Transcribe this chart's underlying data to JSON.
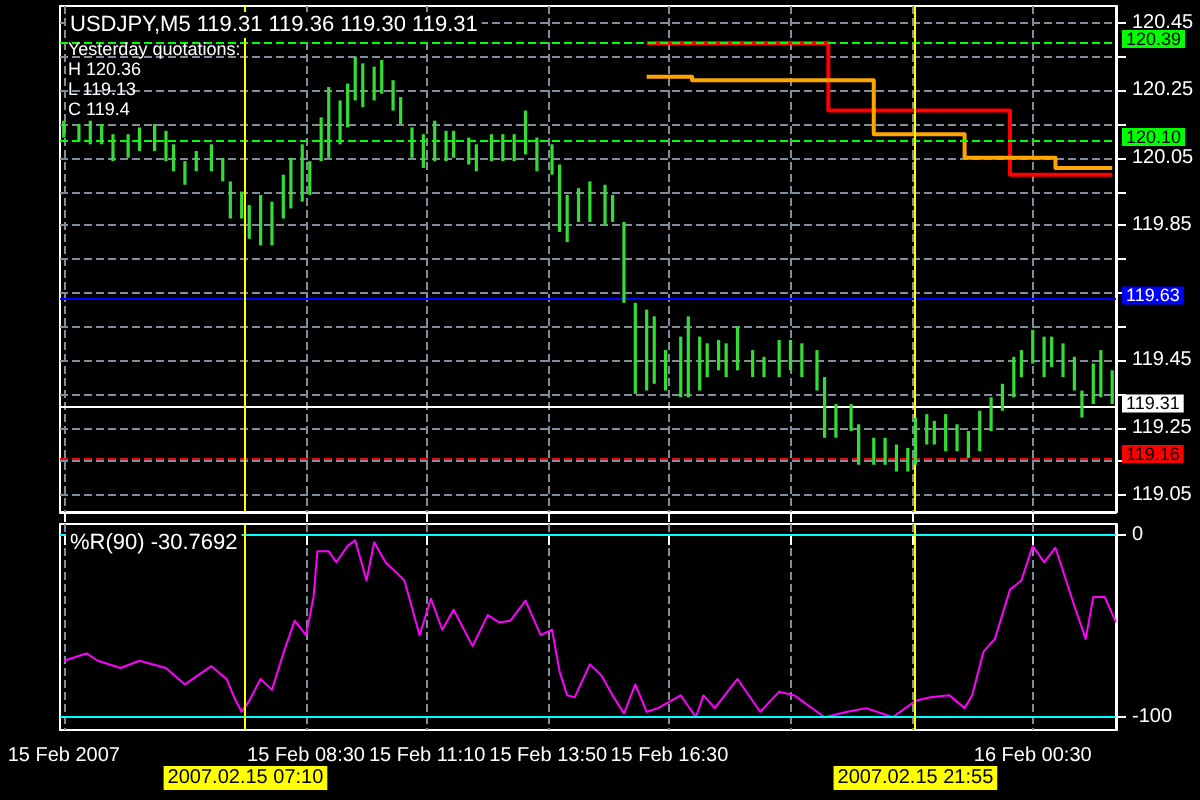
{
  "chart_data": [
    {
      "type": "bar",
      "title": "USDJPY,M5 119.31 119.36 119.30 119.31",
      "annotations": [
        "Yesterday quotations:",
        "H 120.36",
        "L 119.13",
        "C 119.4"
      ],
      "xlim": [
        "2007-02-15T03:05",
        "2007-02-16T02:20"
      ],
      "xticks": [
        {
          "value": "2007-02-15T03:10",
          "label": null
        },
        {
          "value": "2007-02-15T08:30",
          "label": null
        },
        {
          "value": "2007-02-15T11:10",
          "label": null
        },
        {
          "value": "2007-02-15T13:50",
          "label": null
        },
        {
          "value": "2007-02-15T16:30",
          "label": null
        },
        {
          "value": "2007-02-15T19:10",
          "label": null
        },
        {
          "value": "2007-02-15T21:50",
          "label": null
        },
        {
          "value": "2007-02-16T00:30",
          "label": null
        }
      ],
      "ylim": [
        119.0,
        120.5
      ],
      "yticks": [
        119.05,
        {
          "value": 119.15,
          "label": null
        },
        119.25,
        {
          "value": 119.35,
          "label": null
        },
        119.45,
        {
          "value": 119.55,
          "label": null
        },
        {
          "value": 119.65,
          "label": null
        },
        {
          "value": 119.75,
          "label": null
        },
        119.85,
        {
          "value": 119.95,
          "label": null
        },
        120.05,
        {
          "value": 120.15,
          "label": null
        },
        120.25,
        {
          "value": 120.35,
          "label": null
        },
        120.45
      ],
      "tick_labels": "y",
      "grid": true,
      "series": [
        {
          "color": "#33dd33",
          "x": [
            "2007-02-15T03:10",
            "2007-02-15T03:30",
            "2007-02-15T03:45",
            "2007-02-15T04:00",
            "2007-02-15T04:15",
            "2007-02-15T04:35",
            "2007-02-15T04:50",
            "2007-02-15T05:10",
            "2007-02-15T05:25",
            "2007-02-15T05:35",
            "2007-02-15T05:50",
            "2007-02-15T06:05",
            "2007-02-15T06:25",
            "2007-02-15T06:40",
            "2007-02-15T06:50",
            "2007-02-15T07:05",
            "2007-02-15T07:15",
            "2007-02-15T07:30",
            "2007-02-15T07:45",
            "2007-02-15T08:00",
            "2007-02-15T08:10",
            "2007-02-15T08:25",
            "2007-02-15T08:35",
            "2007-02-15T08:50",
            "2007-02-15T09:00",
            "2007-02-15T09:15",
            "2007-02-15T09:25",
            "2007-02-15T09:35",
            "2007-02-15T09:45",
            "2007-02-15T10:00",
            "2007-02-15T10:10",
            "2007-02-15T10:25",
            "2007-02-15T10:35",
            "2007-02-15T10:50",
            "2007-02-15T11:05",
            "2007-02-15T11:20",
            "2007-02-15T11:35",
            "2007-02-15T11:45",
            "2007-02-15T12:05",
            "2007-02-15T12:15",
            "2007-02-15T12:35",
            "2007-02-15T12:50",
            "2007-02-15T13:05",
            "2007-02-15T13:20",
            "2007-02-15T13:35",
            "2007-02-15T13:55",
            "2007-02-15T14:05",
            "2007-02-15T14:15",
            "2007-02-15T14:30",
            "2007-02-15T14:45",
            "2007-02-15T15:05",
            "2007-02-15T15:15",
            "2007-02-15T15:30",
            "2007-02-15T15:45",
            "2007-02-15T16:00",
            "2007-02-15T16:10",
            "2007-02-15T16:25",
            "2007-02-15T16:45",
            "2007-02-15T16:55",
            "2007-02-15T17:10",
            "2007-02-15T17:20",
            "2007-02-15T17:35",
            "2007-02-15T17:45",
            "2007-02-15T18:00",
            "2007-02-15T18:20",
            "2007-02-15T18:35",
            "2007-02-15T18:55",
            "2007-02-15T19:10",
            "2007-02-15T19:25",
            "2007-02-15T19:45",
            "2007-02-15T19:55",
            "2007-02-15T20:10",
            "2007-02-15T20:30",
            "2007-02-15T20:40",
            "2007-02-15T21:00",
            "2007-02-15T21:15",
            "2007-02-15T21:30",
            "2007-02-15T21:45",
            "2007-02-15T21:55",
            "2007-02-15T22:10",
            "2007-02-15T22:20",
            "2007-02-15T22:35",
            "2007-02-15T22:50",
            "2007-02-15T23:05",
            "2007-02-15T23:20",
            "2007-02-15T23:35",
            "2007-02-15T23:50",
            "2007-02-16T00:05",
            "2007-02-16T00:15",
            "2007-02-16T00:30",
            "2007-02-16T00:45",
            "2007-02-16T00:55",
            "2007-02-16T01:10",
            "2007-02-16T01:25",
            "2007-02-16T01:35",
            "2007-02-16T01:50",
            "2007-02-16T02:00",
            "2007-02-16T02:15"
          ],
          "base": [
            120.11,
            120.1,
            120.09,
            120.09,
            120.04,
            120.05,
            120.07,
            120.07,
            120.04,
            120.01,
            119.97,
            120.01,
            120.01,
            119.98,
            119.87,
            119.87,
            119.81,
            119.79,
            119.79,
            119.87,
            119.9,
            119.92,
            119.94,
            120.04,
            120.05,
            120.09,
            120.14,
            120.22,
            120.2,
            120.22,
            120.24,
            120.19,
            120.15,
            120.05,
            120.02,
            120.04,
            120.04,
            120.05,
            120.03,
            120.01,
            120.04,
            120.04,
            120.04,
            120.06,
            120.01,
            120.0,
            119.83,
            119.8,
            119.86,
            119.86,
            119.85,
            119.86,
            119.62,
            119.35,
            119.36,
            119.38,
            119.36,
            119.34,
            119.34,
            119.36,
            119.4,
            119.42,
            119.4,
            119.42,
            119.4,
            119.4,
            119.4,
            119.42,
            119.4,
            119.36,
            119.22,
            119.22,
            119.24,
            119.14,
            119.14,
            119.14,
            119.12,
            119.12,
            119.14,
            119.2,
            119.2,
            119.18,
            119.18,
            119.16,
            119.18,
            119.24,
            119.3,
            119.34,
            119.4,
            119.44,
            119.4,
            119.43,
            119.4,
            119.36,
            119.28,
            119.32,
            119.34,
            119.32
          ],
          "values": [
            0.05,
            0.05,
            0.07,
            0.06,
            0.08,
            0.07,
            0.07,
            0.08,
            0.09,
            0.08,
            0.07,
            0.06,
            0.08,
            0.07,
            0.11,
            0.08,
            0.1,
            0.15,
            0.13,
            0.13,
            0.15,
            0.17,
            0.1,
            0.13,
            0.21,
            0.13,
            0.13,
            0.13,
            0.13,
            0.1,
            0.1,
            0.09,
            0.08,
            0.09,
            0.1,
            0.12,
            0.09,
            0.08,
            0.08,
            0.08,
            0.08,
            0.08,
            0.08,
            0.13,
            0.1,
            0.09,
            0.2,
            0.14,
            0.1,
            0.12,
            0.12,
            0.08,
            0.24,
            0.27,
            0.24,
            0.2,
            0.12,
            0.18,
            0.24,
            0.16,
            0.1,
            0.09,
            0.1,
            0.13,
            0.08,
            0.06,
            0.11,
            0.09,
            0.1,
            0.12,
            0.18,
            0.1,
            0.08,
            0.12,
            0.08,
            0.08,
            0.08,
            0.07,
            0.14,
            0.09,
            0.07,
            0.11,
            0.08,
            0.08,
            0.12,
            0.1,
            0.08,
            0.12,
            0.08,
            0.1,
            0.12,
            0.09,
            0.1,
            0.1,
            0.08,
            0.12,
            0.14,
            0.1
          ]
        },
        {
          "type": "step",
          "color": "#ff0000",
          "x": [
            "2007-02-15T16:00",
            "2007-02-15T20:00",
            "2007-02-16T00:00",
            "2007-02-16T02:15"
          ],
          "values": [
            120.39,
            120.19,
            120.0,
            120.0
          ]
        },
        {
          "type": "step",
          "color": "#ffa500",
          "x": [
            "2007-02-15T16:00",
            "2007-02-15T17:00",
            "2007-02-15T21:00",
            "2007-02-15T23:00",
            "2007-02-16T01:00",
            "2007-02-16T02:15"
          ],
          "values": [
            120.29,
            120.28,
            120.12,
            120.05,
            120.02,
            120.02
          ]
        }
      ],
      "ref_lines": [
        {
          "axis": "y",
          "value": 120.39,
          "label": "120.39",
          "color": "#00ff00",
          "line_style": "dashed"
        },
        {
          "axis": "y",
          "value": 120.1,
          "label": "120.10",
          "color": "#00ff00",
          "line_style": "dashed"
        },
        {
          "axis": "y",
          "value": 119.63,
          "label": "119.63",
          "color": "#0000ff",
          "line_style": "solid"
        },
        {
          "axis": "y",
          "value": 119.31,
          "label": "119.31",
          "color": "#ffffff",
          "line_style": "solid"
        },
        {
          "axis": "y",
          "value": 119.16,
          "label": "119.16",
          "color": "#ff0000",
          "line_style": "dashed"
        },
        {
          "axis": "x",
          "value": "2007-02-15T07:10",
          "label": null,
          "color": "#ffff00",
          "line_style": "solid"
        },
        {
          "axis": "x",
          "value": "2007-02-15T21:55",
          "label": null,
          "color": "#ffff00",
          "line_style": "solid"
        }
      ]
    },
    {
      "type": "line",
      "title": "%R(90) -30.7692",
      "xlim": [
        "2007-02-15T03:05",
        "2007-02-16T02:20"
      ],
      "xticks": [
        {
          "value": "2007-02-15T03:10",
          "label": "15 Feb 2007"
        },
        {
          "value": "2007-02-15T08:30",
          "label": "15 Feb 08:30"
        },
        {
          "value": "2007-02-15T11:10",
          "label": "15 Feb 11:10"
        },
        {
          "value": "2007-02-15T13:50",
          "label": "15 Feb 13:50"
        },
        {
          "value": "2007-02-15T16:30",
          "label": "15 Feb 16:30"
        },
        {
          "value": "2007-02-15T19:10",
          "label": null
        },
        {
          "value": "2007-02-15T21:50",
          "label": null
        },
        {
          "value": "2007-02-16T00:30",
          "label": "16 Feb 00:30"
        }
      ],
      "ylim": [
        -107,
        6
      ],
      "yticks": [
        -100,
        0
      ],
      "grid": "x",
      "series": [
        {
          "color": "#ff00ff",
          "x": [
            "2007-02-15T03:10",
            "2007-02-15T03:40",
            "2007-02-15T03:55",
            "2007-02-15T04:25",
            "2007-02-15T04:50",
            "2007-02-15T05:25",
            "2007-02-15T05:50",
            "2007-02-15T06:25",
            "2007-02-15T06:45",
            "2007-02-15T06:55",
            "2007-02-15T07:05",
            "2007-02-15T07:15",
            "2007-02-15T07:30",
            "2007-02-15T07:45",
            "2007-02-15T08:00",
            "2007-02-15T08:15",
            "2007-02-15T08:30",
            "2007-02-15T08:40",
            "2007-02-15T08:45",
            "2007-02-15T09:00",
            "2007-02-15T09:10",
            "2007-02-15T09:25",
            "2007-02-15T09:35",
            "2007-02-15T09:50",
            "2007-02-15T10:00",
            "2007-02-15T10:15",
            "2007-02-15T10:40",
            "2007-02-15T11:00",
            "2007-02-15T11:15",
            "2007-02-15T11:30",
            "2007-02-15T11:45",
            "2007-02-15T12:10",
            "2007-02-15T12:30",
            "2007-02-15T12:45",
            "2007-02-15T13:00",
            "2007-02-15T13:20",
            "2007-02-15T13:40",
            "2007-02-15T13:55",
            "2007-02-15T14:05",
            "2007-02-15T14:15",
            "2007-02-15T14:25",
            "2007-02-15T14:45",
            "2007-02-15T15:00",
            "2007-02-15T15:15",
            "2007-02-15T15:30",
            "2007-02-15T15:45",
            "2007-02-15T16:00",
            "2007-02-15T16:15",
            "2007-02-15T16:45",
            "2007-02-15T17:05",
            "2007-02-15T17:15",
            "2007-02-15T17:30",
            "2007-02-15T18:00",
            "2007-02-15T18:30",
            "2007-02-15T18:55",
            "2007-02-15T19:15",
            "2007-02-15T19:55",
            "2007-02-15T20:25",
            "2007-02-15T20:50",
            "2007-02-15T21:25",
            "2007-02-15T21:55",
            "2007-02-15T22:15",
            "2007-02-15T22:40",
            "2007-02-15T23:00",
            "2007-02-15T23:10",
            "2007-02-15T23:25",
            "2007-02-15T23:40",
            "2007-02-16T00:00",
            "2007-02-16T00:15",
            "2007-02-16T00:30",
            "2007-02-16T00:45",
            "2007-02-16T01:00",
            "2007-02-16T01:25",
            "2007-02-16T01:40",
            "2007-02-16T01:50",
            "2007-02-16T02:05",
            "2007-02-16T02:20"
          ],
          "values": [
            -69,
            -65,
            -69,
            -73,
            -69,
            -73,
            -82,
            -72,
            -79,
            -89,
            -97,
            -91,
            -79,
            -85,
            -65,
            -47,
            -55,
            -34,
            -9,
            -9,
            -15,
            -6,
            -3,
            -25,
            -4,
            -15,
            -25,
            -55,
            -35,
            -52,
            -41,
            -61,
            -44,
            -48,
            -47,
            -36,
            -55,
            -52,
            -75,
            -88,
            -89,
            -71,
            -77,
            -88,
            -98,
            -82,
            -97,
            -95,
            -88,
            -100,
            -88,
            -95,
            -79,
            -97,
            -86,
            -88,
            -100,
            -97,
            -95,
            -100,
            -91,
            -89,
            -88,
            -95,
            -88,
            -64,
            -57,
            -30,
            -25,
            -6,
            -15,
            -7,
            -39,
            -57,
            -34,
            -34,
            -48
          ]
        }
      ],
      "ref_lines": [
        {
          "axis": "y",
          "value": 0,
          "label": null,
          "color": "#00ffff",
          "line_style": "solid"
        },
        {
          "axis": "y",
          "value": -100,
          "label": null,
          "color": "#00ffff",
          "line_style": "solid"
        },
        {
          "axis": "x",
          "value": "2007-02-15T07:10",
          "label": "2007.02.15 07:10",
          "color": "#ffff00",
          "line_style": "solid"
        },
        {
          "axis": "x",
          "value": "2007-02-15T21:55",
          "label": "2007.02.15 21:55",
          "color": "#ffff00",
          "line_style": "solid"
        }
      ]
    }
  ]
}
